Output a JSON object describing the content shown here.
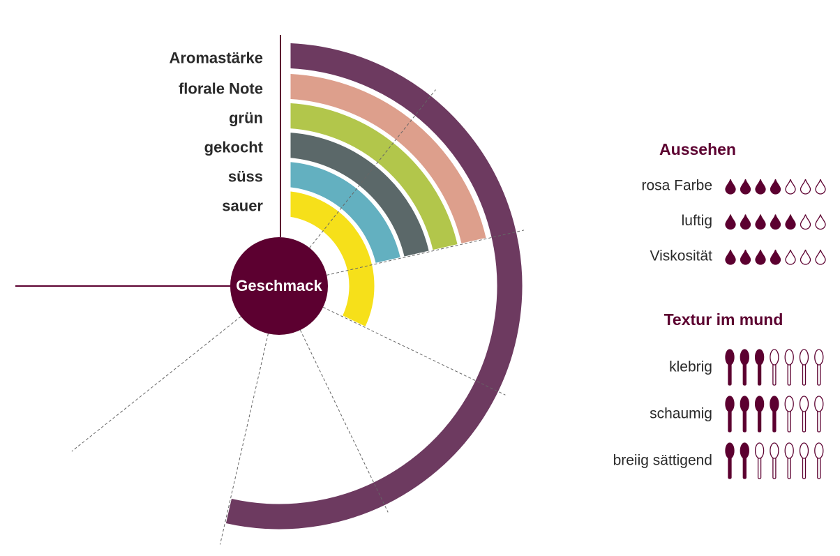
{
  "chart_data": [
    {
      "type": "radial-bar",
      "title": "Geschmack",
      "categories": [
        "Aromastärke",
        "florale Note",
        "grün",
        "gekocht",
        "süss",
        "sauer"
      ],
      "values": [
        5,
        2,
        2,
        2,
        2,
        3
      ],
      "colors": [
        "#6d3a60",
        "#dd9f8c",
        "#b2c64b",
        "#5b6869",
        "#63b0c0",
        "#f6e01a"
      ],
      "rlim": [
        0,
        7
      ],
      "rticks": [
        0,
        1,
        2,
        3,
        4,
        5,
        6,
        7
      ]
    },
    {
      "type": "icon-rating",
      "title": "Aussehen",
      "icon": "drop",
      "color": "#5c0030",
      "categories": [
        "rosa Farbe",
        "luftig",
        "Viskosität"
      ],
      "values": [
        4,
        5,
        4
      ],
      "xlim": [
        0,
        7
      ]
    },
    {
      "type": "icon-rating",
      "title": "Textur im mund",
      "icon": "spoon",
      "color": "#5c0030",
      "categories": [
        "klebrig",
        "schaumig",
        "breiig sättigend"
      ],
      "values": [
        3,
        4,
        2
      ],
      "xlim": [
        0,
        7
      ]
    }
  ]
}
